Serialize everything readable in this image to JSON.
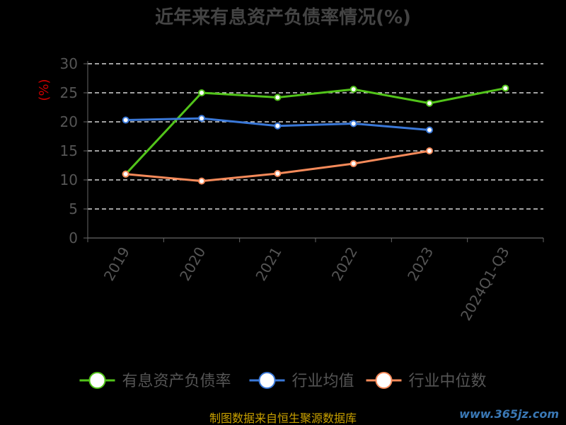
{
  "chart_data": {
    "type": "line",
    "title": "近年来有息资产负债率情况(%)",
    "unit_label": "(%)",
    "categories": [
      "2019",
      "2020",
      "2021",
      "2022",
      "2023",
      "2024Q1-Q3"
    ],
    "ylim": [
      0,
      30
    ],
    "yticks": [
      0,
      5,
      10,
      15,
      20,
      25,
      30
    ],
    "grid": true,
    "legend_position": "bottom",
    "series": [
      {
        "name": "有息资产负债率",
        "color": "#52c41a",
        "values": [
          11.0,
          25.0,
          24.2,
          25.6,
          23.2,
          25.8
        ]
      },
      {
        "name": "行业均值",
        "color": "#3a78d8",
        "values": [
          20.3,
          20.6,
          19.3,
          19.7,
          18.6,
          null
        ]
      },
      {
        "name": "行业中位数",
        "color": "#f58a5a",
        "values": [
          11.0,
          9.8,
          11.1,
          12.8,
          15.0,
          null
        ]
      }
    ]
  },
  "footer": {
    "source": "制图数据来自恒生聚源数据库",
    "watermark": "www.365jz.com"
  }
}
